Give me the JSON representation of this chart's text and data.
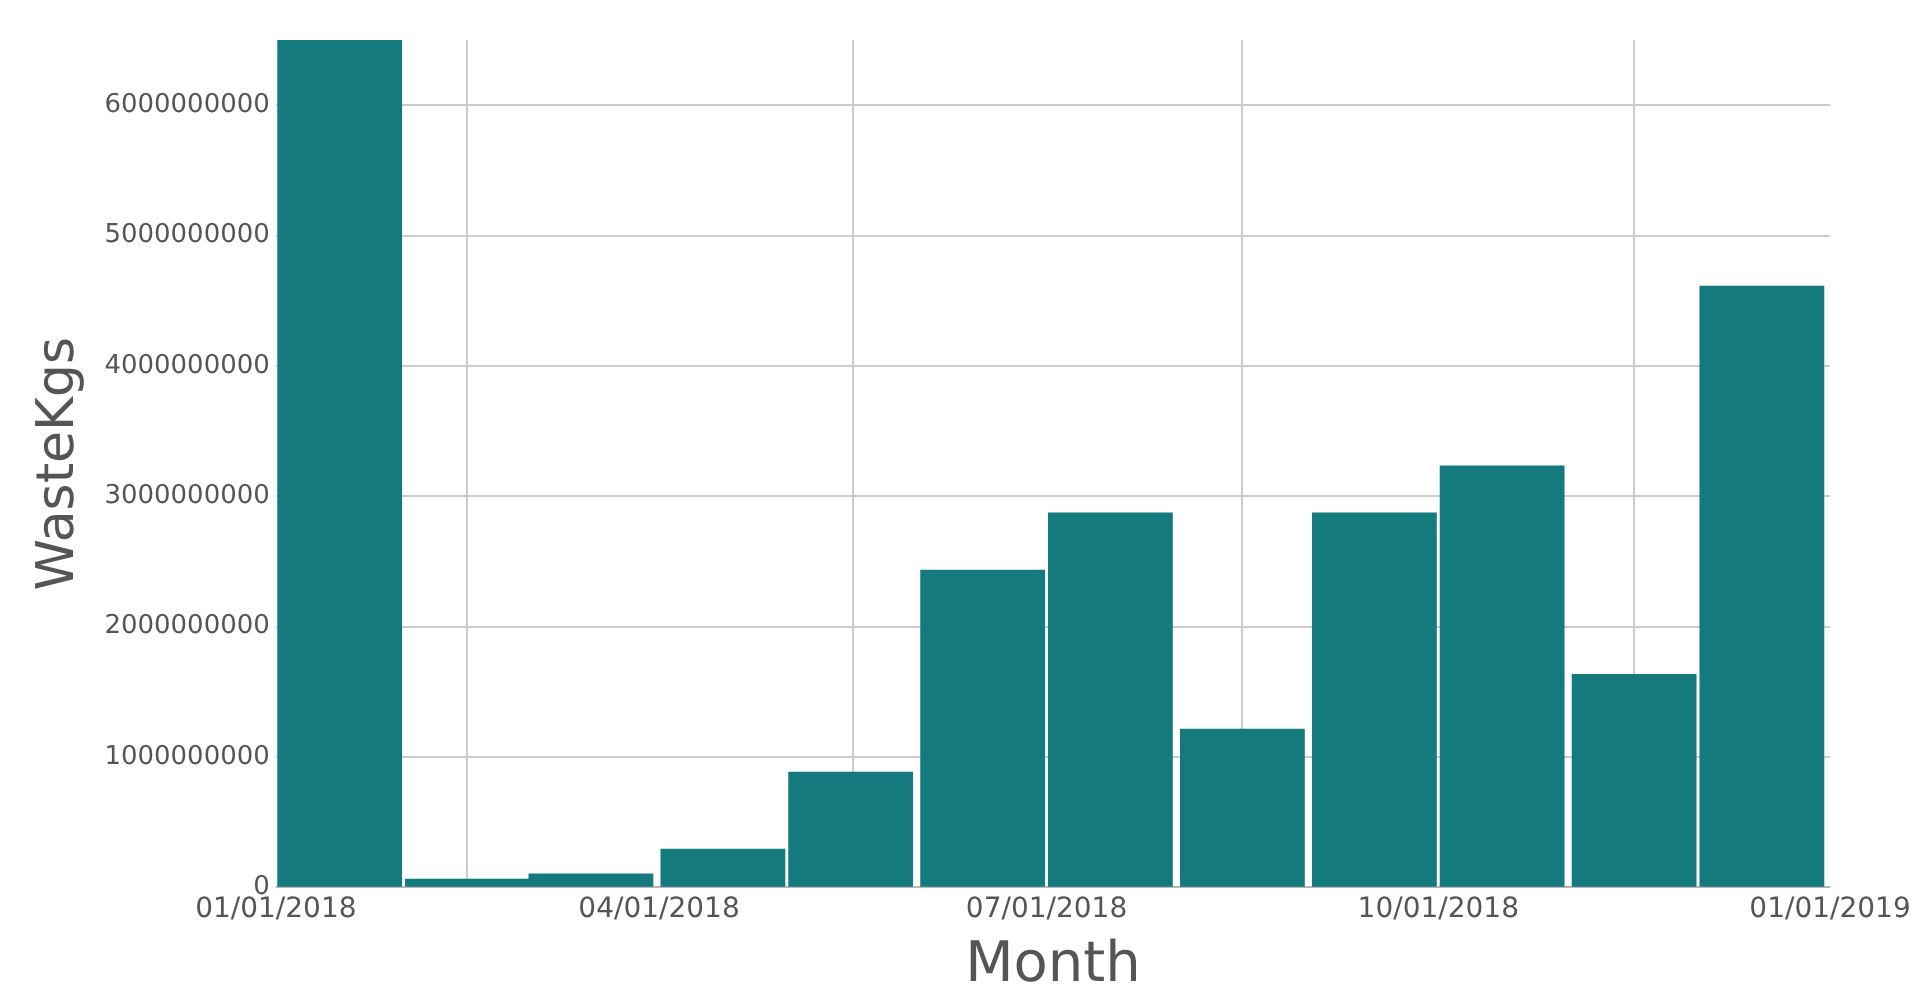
{
  "chart_data": {
    "type": "bar",
    "xlabel": "Month",
    "ylabel": "WasteKgs",
    "x": [
      "2018-01-16",
      "2018-02-15",
      "2018-03-16",
      "2018-04-16",
      "2018-05-16",
      "2018-06-16",
      "2018-07-16",
      "2018-08-16",
      "2018-09-16",
      "2018-10-16",
      "2018-11-16",
      "2018-12-16"
    ],
    "values": [
      6500000000,
      60000000,
      100000000,
      290000000,
      880000000,
      2430000000,
      2870000000,
      1210000000,
      2870000000,
      3230000000,
      1630000000,
      4610000000
    ],
    "color": "#147a7e",
    "xlim": [
      "2018-01-01",
      "2019-01-01"
    ],
    "xticks": [
      {
        "value": "2018-01-01",
        "label": "01/01/2018"
      },
      {
        "value": "2018-04-01",
        "label": "04/01/2018"
      },
      {
        "value": "2018-07-01",
        "label": "07/01/2018"
      },
      {
        "value": "2018-10-01",
        "label": "10/01/2018"
      },
      {
        "value": "2019-01-01",
        "label": "01/01/2019"
      }
    ],
    "ylim": [
      0,
      6500000000
    ],
    "yticks": [
      0,
      1000000000,
      2000000000,
      3000000000,
      4000000000,
      5000000000,
      6000000000
    ],
    "grid": true
  }
}
